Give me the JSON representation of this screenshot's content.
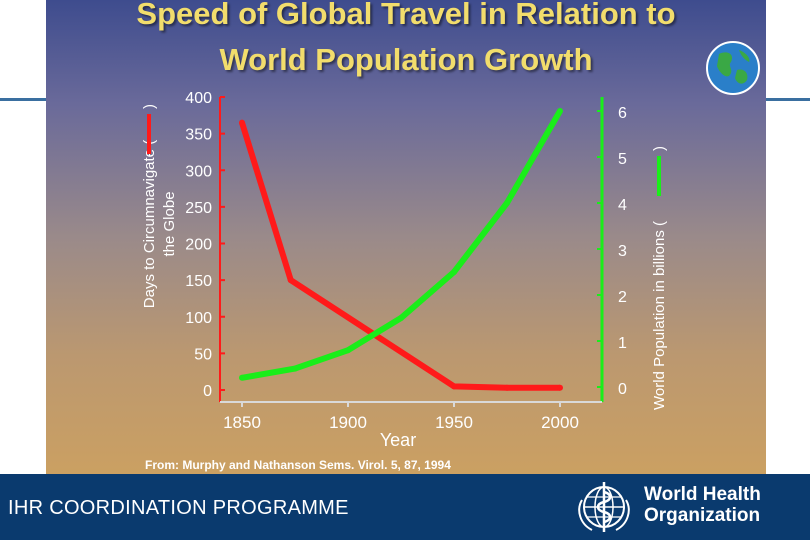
{
  "slide": {
    "title_line1": "Speed of Global Travel in Relation to",
    "title_line2": "World Population Growth",
    "source": "From: Murphy and Nathanson Sems. Virol. 5, 87, 1994"
  },
  "footer": {
    "program": "IHR COORDINATION PROGRAMME",
    "org_line1": "World Health",
    "org_line2": "Organization"
  },
  "chart_data": {
    "type": "line",
    "xlabel": "Year",
    "x_ticks": [
      "1850",
      "1900",
      "1950",
      "2000"
    ],
    "xlim": [
      1850,
      2000
    ],
    "left_axis": {
      "label_line1": "Days to Circumnavigate (",
      "label_line2": "the Globe",
      "label_close": ")",
      "ticks": [
        "400",
        "350",
        "300",
        "250",
        "200",
        "150",
        "100",
        "50",
        "0"
      ],
      "ylim": [
        0,
        400
      ],
      "color": "#ff1a1a"
    },
    "right_axis": {
      "label_open": "World Population in billions (",
      "label_close": ")",
      "ticks": [
        "6",
        "5",
        "4",
        "3",
        "2",
        "1",
        "0"
      ],
      "ylim": [
        0,
        6
      ],
      "color": "#1aee1a"
    },
    "series": [
      {
        "axis": "left",
        "color": "#ff1a1a",
        "x": [
          1850,
          1873,
          1950,
          1975,
          2000
        ],
        "y": [
          365,
          150,
          5,
          3,
          3
        ]
      },
      {
        "axis": "right",
        "color": "#1aee1a",
        "x": [
          1850,
          1875,
          1900,
          1925,
          1950,
          1975,
          2000
        ],
        "y": [
          0.2,
          0.4,
          0.8,
          1.5,
          2.5,
          4,
          6
        ]
      }
    ]
  }
}
